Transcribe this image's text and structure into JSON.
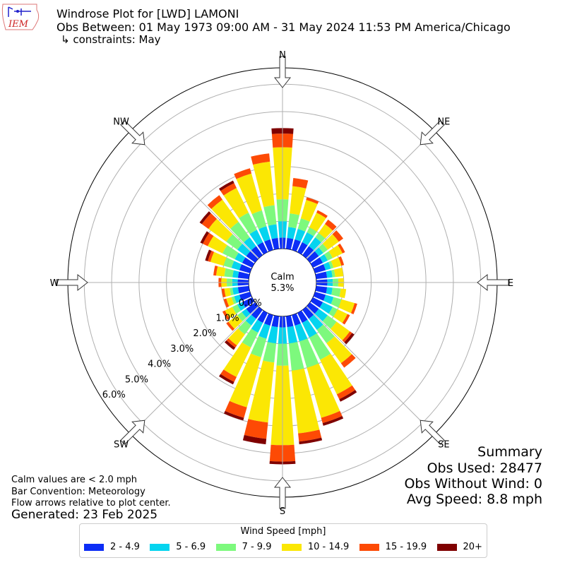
{
  "header": {
    "title": "Windrose Plot for [LWD] LAMONI",
    "obs_between": "Obs Between: 01 May 1973 09:00 AM - 31 May 2024 11:53 PM America/Chicago",
    "constraints": "↳ constraints: May",
    "logo_text": "IEM"
  },
  "summary": {
    "heading": "Summary",
    "obs_used": "Obs Used: 28477",
    "obs_without_wind": "Obs Without Wind: 0",
    "avg_speed": "Avg Speed: 8.8 mph"
  },
  "footer": {
    "calm_note": "Calm values are < 2.0 mph",
    "bar_convention": "Bar Convention: Meteorology",
    "flow_note": "Flow arrows relative to plot center.",
    "generated": "Generated: 23 Feb 2025"
  },
  "chart_data": {
    "type": "windrose",
    "calm_label": "Calm",
    "calm_value": "5.3%",
    "directions": [
      "N",
      "NE",
      "E",
      "SE",
      "S",
      "SW",
      "W",
      "NW"
    ],
    "radial_tick_labels": [
      "0.0%",
      "1.0%",
      "2.0%",
      "3.0%",
      "4.0%",
      "5.0%",
      "6.0%"
    ],
    "rmax": 6.6,
    "legend_title": "Wind Speed [mph]",
    "bins": [
      {
        "label": "2 - 4.9",
        "color": "#0c2df6"
      },
      {
        "label": "5 - 6.9",
        "color": "#05d4ef"
      },
      {
        "label": "7 - 9.9",
        "color": "#7df97d"
      },
      {
        "label": "10 - 14.9",
        "color": "#fbe704"
      },
      {
        "label": "15 - 19.9",
        "color": "#fd4a05"
      },
      {
        "label": "20+",
        "color": "#7f0000"
      }
    ],
    "sector_degrees": [
      0,
      10,
      20,
      30,
      40,
      50,
      60,
      70,
      80,
      90,
      100,
      110,
      120,
      130,
      140,
      150,
      160,
      170,
      180,
      190,
      200,
      210,
      220,
      230,
      240,
      250,
      260,
      270,
      280,
      290,
      300,
      310,
      320,
      330,
      340,
      350
    ],
    "cumulative_percent": [
      [
        0.4,
        1.0,
        1.8,
        3.7,
        4.2,
        4.4
      ],
      [
        0.4,
        0.8,
        1.3,
        2.3,
        2.6,
        2.6
      ],
      [
        0.4,
        0.8,
        1.2,
        1.9,
        2.0,
        2.0
      ],
      [
        0.4,
        0.8,
        1.0,
        1.6,
        1.7,
        1.7
      ],
      [
        0.4,
        0.8,
        1.0,
        1.4,
        1.6,
        1.6
      ],
      [
        0.4,
        0.6,
        0.8,
        1.3,
        1.5,
        1.5
      ],
      [
        0.4,
        0.6,
        0.8,
        1.2,
        1.3,
        1.3
      ],
      [
        0.4,
        0.6,
        0.7,
        1.0,
        1.1,
        1.1
      ],
      [
        0.4,
        0.6,
        0.7,
        1.0,
        1.0,
        1.0
      ],
      [
        0.4,
        0.6,
        0.8,
        1.0,
        1.0,
        1.0
      ],
      [
        0.4,
        0.6,
        0.9,
        1.1,
        1.1,
        1.1
      ],
      [
        0.4,
        0.7,
        1.0,
        1.5,
        1.6,
        1.6
      ],
      [
        0.4,
        0.8,
        1.0,
        1.4,
        1.5,
        1.5
      ],
      [
        0.4,
        0.8,
        1.2,
        1.8,
        1.9,
        2.0
      ],
      [
        0.4,
        0.9,
        1.5,
        2.4,
        2.6,
        2.6
      ],
      [
        0.4,
        1.0,
        1.9,
        3.3,
        3.5,
        3.6
      ],
      [
        0.4,
        1.0,
        2.0,
        3.9,
        4.1,
        4.2
      ],
      [
        0.4,
        1.0,
        2.0,
        4.3,
        4.6,
        4.7
      ],
      [
        0.4,
        1.0,
        1.8,
        4.7,
        5.3,
        5.4
      ],
      [
        0.4,
        1.0,
        1.7,
        3.9,
        4.5,
        4.7
      ],
      [
        0.4,
        0.9,
        1.6,
        3.5,
        3.9,
        4.0
      ],
      [
        0.4,
        0.8,
        1.4,
        2.6,
        2.8,
        2.9
      ],
      [
        0.4,
        0.7,
        1.1,
        1.6,
        1.7,
        1.8
      ],
      [
        0.4,
        0.6,
        0.8,
        1.2,
        1.3,
        1.3
      ],
      [
        0.4,
        0.6,
        0.8,
        1.1,
        1.2,
        1.2
      ],
      [
        0.4,
        0.6,
        0.7,
        0.9,
        1.0,
        1.0
      ],
      [
        0.4,
        0.6,
        0.7,
        0.9,
        1.0,
        1.0
      ],
      [
        0.4,
        0.6,
        0.8,
        1.0,
        1.1,
        1.1
      ],
      [
        0.4,
        0.6,
        0.9,
        1.2,
        1.3,
        1.3
      ],
      [
        0.4,
        0.7,
        1.0,
        1.5,
        1.6,
        1.7
      ],
      [
        0.4,
        0.7,
        1.2,
        1.8,
        2.0,
        2.1
      ],
      [
        0.4,
        0.8,
        1.3,
        2.1,
        2.4,
        2.5
      ],
      [
        0.4,
        0.8,
        1.5,
        2.5,
        2.7,
        2.7
      ],
      [
        0.4,
        0.9,
        1.6,
        2.6,
        2.8,
        2.9
      ],
      [
        0.4,
        0.9,
        1.5,
        2.9,
        3.1,
        3.1
      ],
      [
        0.4,
        0.9,
        1.6,
        3.2,
        3.5,
        3.5
      ]
    ]
  }
}
